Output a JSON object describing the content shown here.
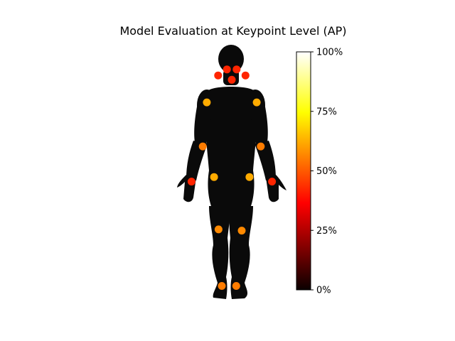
{
  "chart_data": {
    "type": "scatter",
    "title": "Model Evaluation at Keypoint Level (AP)",
    "colormap": "hot",
    "colorbar": {
      "range": [
        0,
        100
      ],
      "ticks": [
        0,
        25,
        50,
        75,
        100
      ],
      "tick_labels": [
        "0%",
        "25%",
        "50%",
        "75%",
        "100%"
      ]
    },
    "keypoints": [
      {
        "value": 42,
        "x": 0.31,
        "y": 0.916
      },
      {
        "value": 42,
        "x": 0.37,
        "y": 0.916
      },
      {
        "value": 42,
        "x": 0.255,
        "y": 0.892
      },
      {
        "value": 42,
        "x": 0.425,
        "y": 0.892
      },
      {
        "value": 42,
        "x": 0.34,
        "y": 0.875
      },
      {
        "value": 62,
        "x": 0.185,
        "y": 0.785
      },
      {
        "value": 62,
        "x": 0.495,
        "y": 0.785
      },
      {
        "value": 55,
        "x": 0.16,
        "y": 0.61
      },
      {
        "value": 55,
        "x": 0.52,
        "y": 0.61
      },
      {
        "value": 42,
        "x": 0.09,
        "y": 0.47
      },
      {
        "value": 42,
        "x": 0.59,
        "y": 0.47
      },
      {
        "value": 62,
        "x": 0.23,
        "y": 0.488
      },
      {
        "value": 62,
        "x": 0.45,
        "y": 0.488
      },
      {
        "value": 57,
        "x": 0.258,
        "y": 0.28
      },
      {
        "value": 57,
        "x": 0.402,
        "y": 0.275
      },
      {
        "value": 55,
        "x": 0.278,
        "y": 0.055
      },
      {
        "value": 55,
        "x": 0.368,
        "y": 0.055
      }
    ]
  }
}
